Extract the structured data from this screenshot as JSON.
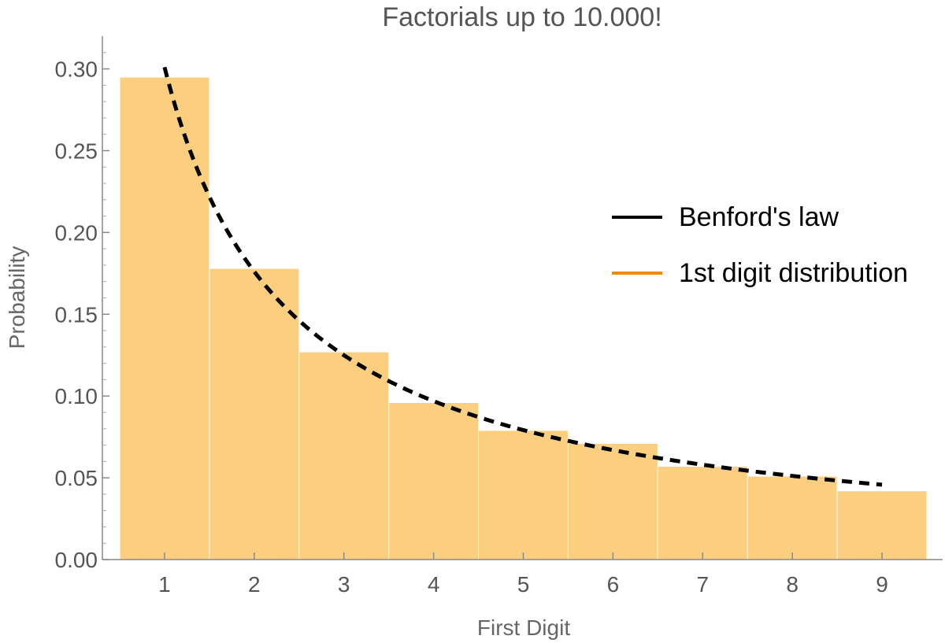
{
  "chart_data": {
    "type": "bar",
    "title": "Factorials up to 10.000!",
    "xlabel": "First Digit",
    "ylabel": "Probability",
    "categories": [
      "1",
      "2",
      "3",
      "4",
      "5",
      "6",
      "7",
      "8",
      "9"
    ],
    "x": [
      1,
      2,
      3,
      4,
      5,
      6,
      7,
      8,
      9
    ],
    "xlim": [
      0.5,
      9.5
    ],
    "ylim": [
      0,
      0.32
    ],
    "yticks": [
      "0.00",
      "0.05",
      "0.10",
      "0.15",
      "0.20",
      "0.25",
      "0.30"
    ],
    "series": [
      {
        "name": "1st digit distribution",
        "type": "bar",
        "color": "#FCCF80",
        "legend_color": "#F28C00",
        "values": [
          0.295,
          0.178,
          0.127,
          0.096,
          0.079,
          0.071,
          0.057,
          0.051,
          0.042
        ]
      },
      {
        "name": "Benford's law",
        "type": "line",
        "style": "dashed",
        "color": "#000000",
        "x": [
          1,
          2,
          3,
          4,
          5,
          6,
          7,
          8,
          9
        ],
        "values": [
          0.301,
          0.176,
          0.125,
          0.097,
          0.079,
          0.067,
          0.058,
          0.051,
          0.046
        ]
      }
    ],
    "legend": {
      "position": "right",
      "entries": [
        "Benford's law",
        "1st digit distribution"
      ]
    },
    "grid": false
  }
}
